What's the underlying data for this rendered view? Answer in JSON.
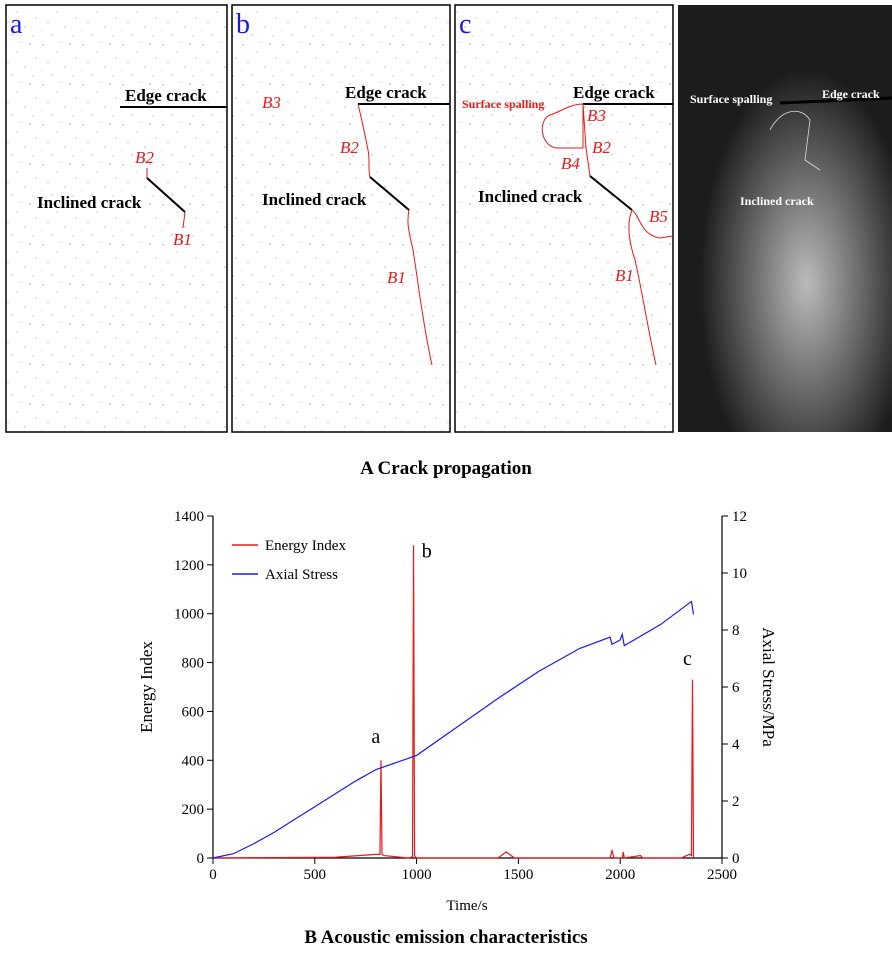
{
  "figure_a": {
    "caption": "A Crack propagation",
    "panels": [
      {
        "letter": "a",
        "labels": [
          "Edge crack",
          "B2",
          "Inclined crack",
          "B1"
        ]
      },
      {
        "letter": "b",
        "labels": [
          "Edge crack",
          "B3",
          "B2",
          "Inclined crack",
          "B1"
        ]
      },
      {
        "letter": "c",
        "labels": [
          "Surface spalling",
          "Edge crack",
          "B3",
          "B2",
          "B4",
          "Inclined crack",
          "B5",
          "B1"
        ]
      }
    ],
    "photo_labels": [
      "Surface spalling",
      "Edge crack",
      "Inclined crack"
    ]
  },
  "chart_data": {
    "type": "line",
    "caption": "B Acoustic emission characteristics",
    "xlabel": "Time/s",
    "ylabel": "Energy Index",
    "y2label": "Axial Stress/MPa",
    "xlim": [
      0,
      2500
    ],
    "xticks": [
      0,
      500,
      1000,
      1500,
      2000,
      2500
    ],
    "ylim": [
      0,
      1400
    ],
    "yticks": [
      0,
      200,
      400,
      600,
      800,
      1000,
      1200,
      1400
    ],
    "y2lim": [
      0,
      12
    ],
    "y2ticks": [
      0,
      2,
      4,
      6,
      8,
      10,
      12
    ],
    "legend": "upper left",
    "series": [
      {
        "name": "Energy Index",
        "color": "#e8191a",
        "x": [
          0,
          600,
          800,
          820,
          825,
          830,
          840,
          960,
          980,
          985,
          990,
          1000,
          1400,
          1440,
          1480,
          1950,
          1960,
          1970,
          2010,
          2015,
          2020,
          2100,
          2110,
          2300,
          2340,
          2350,
          2355,
          2360
        ],
        "values": [
          0,
          3,
          15,
          15,
          400,
          15,
          10,
          0,
          5,
          1280,
          10,
          0,
          0,
          25,
          0,
          0,
          30,
          0,
          0,
          25,
          0,
          10,
          0,
          0,
          15,
          10,
          730,
          0
        ]
      },
      {
        "name": "Axial Stress",
        "color": "#1a1ae8",
        "axis": "y2",
        "x": [
          0,
          100,
          200,
          300,
          400,
          500,
          600,
          700,
          800,
          900,
          1000,
          1200,
          1400,
          1600,
          1800,
          1950,
          1960,
          2000,
          2010,
          2020,
          2200,
          2340,
          2350,
          2360
        ],
        "values": [
          0,
          0.15,
          0.5,
          0.9,
          1.35,
          1.8,
          2.25,
          2.7,
          3.1,
          3.35,
          3.6,
          4.6,
          5.6,
          6.55,
          7.35,
          7.75,
          7.5,
          7.65,
          7.85,
          7.45,
          8.2,
          8.95,
          9.0,
          8.55
        ]
      }
    ],
    "annotations": [
      {
        "text": "a",
        "x": 800,
        "y": 470
      },
      {
        "text": "b",
        "x": 1050,
        "y": 1230
      },
      {
        "text": "c",
        "x": 2330,
        "y": 790
      }
    ]
  }
}
